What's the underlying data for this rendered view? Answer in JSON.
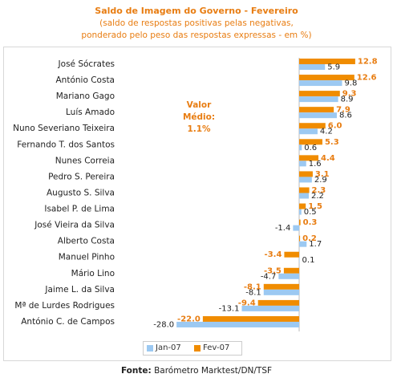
{
  "chart_data": {
    "type": "bar",
    "orientation": "horizontal",
    "title": "Saldo de Imagem do Governo - Fevereiro",
    "subtitle_lines": [
      "(saldo de respostas positivas pelas negativas,",
      "ponderado pelo peso das respostas expressas - em %)"
    ],
    "categories": [
      "José Sócrates",
      "António Costa",
      "Mariano Gago",
      "Luís Amado",
      "Nuno Severiano Teixeira",
      "Fernando T. dos Santos",
      "Nunes Correia",
      "Pedro S. Pereira",
      "Augusto S. Silva",
      "Isabel P. de Lima",
      "José Vieira da Silva",
      "Alberto Costa",
      "Manuel Pinho",
      "Mário Lino",
      "Jaime L. da Silva",
      "Mª de Lurdes Rodrigues",
      "António C. de Campos"
    ],
    "series": [
      {
        "name": "Jan-07",
        "color": "#9cc9f2",
        "values": [
          5.9,
          9.8,
          8.9,
          8.6,
          4.2,
          0.6,
          1.6,
          2.9,
          2.2,
          0.5,
          -1.4,
          1.7,
          0.1,
          -4.7,
          -8.1,
          -13.1,
          -28.0
        ],
        "labels": [
          "5.9",
          "9.8",
          "8.9",
          "8.6",
          "4.2",
          "0.6",
          "1.6",
          "2.9",
          "2.2",
          "0.5",
          "-1.4",
          "1.7",
          "0.1",
          "-4.7",
          "-8.1",
          "-13.1",
          "-28.0"
        ]
      },
      {
        "name": "Fev-07",
        "color": "#f08c00",
        "values": [
          12.8,
          12.6,
          9.3,
          7.9,
          6.0,
          5.3,
          4.4,
          3.1,
          2.3,
          1.5,
          0.3,
          0.2,
          -3.4,
          -3.5,
          -8.1,
          -9.4,
          -22.0
        ],
        "labels": [
          "12.8",
          "12.6",
          "9.3",
          "7.9",
          "6.0",
          "5.3",
          "4.4",
          "3.1",
          "2.3",
          "1.5",
          "0.3",
          "0.2",
          "-3.4",
          "-3.5",
          "-8.1",
          "-9.4",
          "-22.0"
        ]
      }
    ],
    "xlim": [
      -28.0,
      12.8
    ],
    "legend_position": "bottom-center",
    "annotation": {
      "lines": [
        "Valor",
        "Médio:",
        "1.1%"
      ]
    }
  },
  "source": {
    "label": "Fonte:",
    "text": "Barómetro Marktest/DN/TSF"
  }
}
